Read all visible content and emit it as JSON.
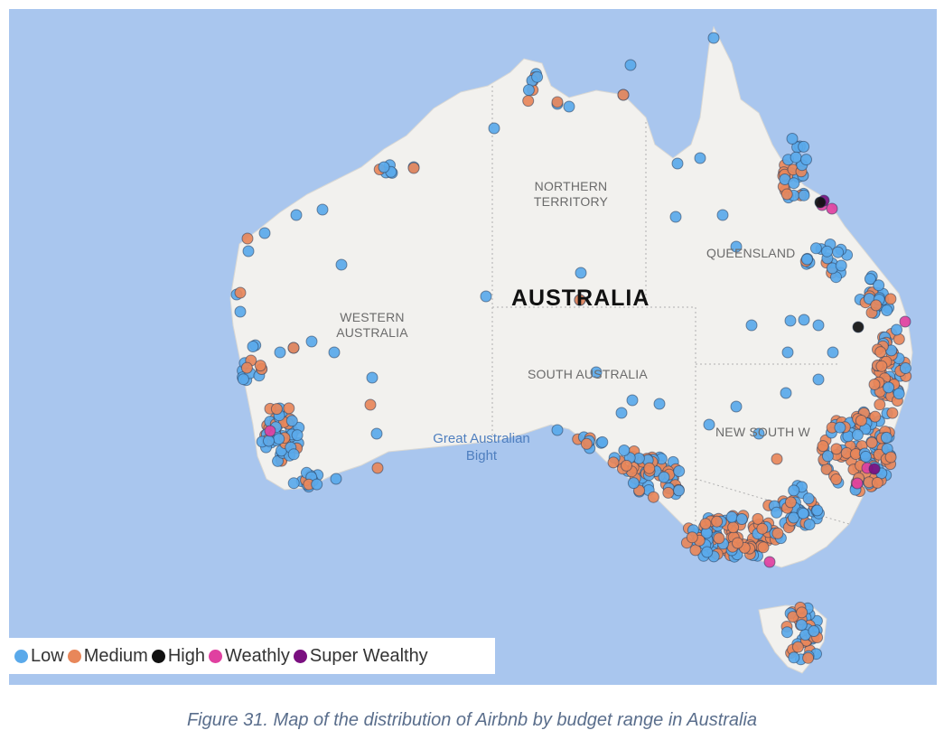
{
  "map": {
    "country_label": "AUSTRALIA",
    "region_labels": {
      "northern_territory": "NORTHERN\nTERRITORY",
      "western_australia": "WESTERN\nAUSTRALIA",
      "queensland": "QUEENSLAND",
      "south_australia": "SOUTH AUSTRALIA",
      "new_south_wales": "NEW SOUTH W"
    },
    "water_label": "Great Australian\nBight",
    "colors": {
      "ocean": "#a9c6ee",
      "land": "#f2f1ee",
      "low": "#5aa9ea",
      "medium": "#e8875a",
      "high": "#111111",
      "wealthy": "#e040a0",
      "super_wealthy": "#7a1080"
    }
  },
  "legend": {
    "items": [
      {
        "label": "Low",
        "color": "#5aa9ea"
      },
      {
        "label": "Medium",
        "color": "#e8875a"
      },
      {
        "label": "High",
        "color": "#111111"
      },
      {
        "label": "Weathly",
        "color": "#e040a0"
      },
      {
        "label": "Super Wealthy",
        "color": "#7a1080"
      }
    ]
  },
  "caption": "Figure 31. Map of the distribution of Airbnb by budget range in Australia"
}
